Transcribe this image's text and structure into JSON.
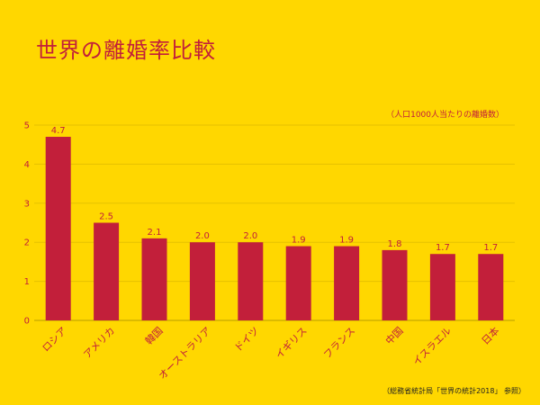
{
  "colors": {
    "background": "#FFD700",
    "bar": "#C21F3A",
    "text": "#C21F3A",
    "grid": "#E6C200",
    "axis": "#B89C00",
    "source_text": "#222222"
  },
  "chart_data": {
    "type": "bar",
    "title": "世界の離婚率比較",
    "unit_note": "（人口1000人当たりの離婚数）",
    "source": "（総務省統計局「世界の統計2018」 参照）",
    "categories": [
      "ロシア",
      "アメリカ",
      "韓国",
      "オーストラリア",
      "ドイツ",
      "イギリス",
      "フランス",
      "中国",
      "イスラエル",
      "日本"
    ],
    "values": [
      4.7,
      2.5,
      2.1,
      2.0,
      2.0,
      1.9,
      1.9,
      1.8,
      1.7,
      1.7
    ],
    "data_labels": [
      "4.7",
      "2.5",
      "2.1",
      "2.0",
      "2.0",
      "1.9",
      "1.9",
      "1.8",
      "1.7",
      "1.7"
    ],
    "ylim": [
      0,
      5
    ],
    "yticks": [
      0,
      1,
      2,
      3,
      4,
      5
    ],
    "grid": true,
    "legend": "none"
  }
}
